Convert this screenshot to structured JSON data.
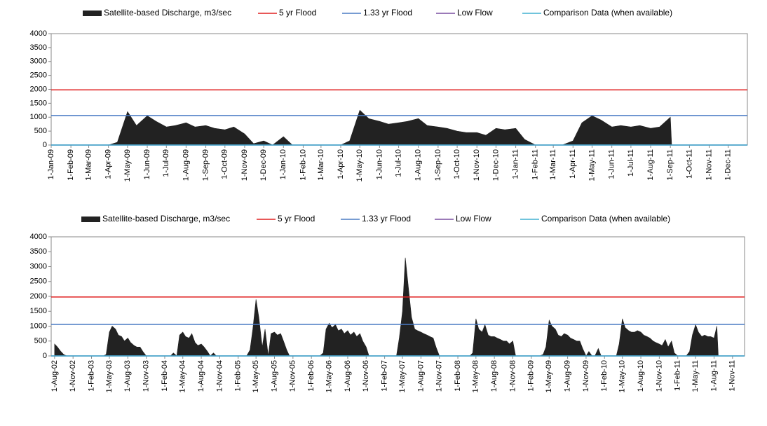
{
  "chart_data": [
    {
      "type": "area",
      "xlim": [
        "1-Jan-09",
        "31-Dec-11"
      ],
      "ylim": [
        0,
        4000
      ],
      "yticks": [
        0,
        500,
        1000,
        1500,
        2000,
        2500,
        3000,
        3500,
        4000
      ],
      "xticks": [
        "1-Jan-09",
        "1-Feb-09",
        "1-Mar-09",
        "1-Apr-09",
        "1-May-09",
        "1-Jun-09",
        "1-Jul-09",
        "1-Aug-09",
        "1-Sep-09",
        "1-Oct-09",
        "1-Nov-09",
        "1-Dec-09",
        "1-Jan-10",
        "1-Feb-10",
        "1-Mar-10",
        "1-Apr-10",
        "1-May-10",
        "1-Jun-10",
        "1-Jul-10",
        "1-Aug-10",
        "1-Sep-10",
        "1-Oct-10",
        "1-Nov-10",
        "1-Dec-10",
        "1-Jan-11",
        "1-Feb-11",
        "1-Mar-11",
        "1-Apr-11",
        "1-May-11",
        "1-Jun-11",
        "1-Jul-11",
        "1-Aug-11",
        "1-Sep-11",
        "1-Oct-11",
        "1-Nov-11",
        "1-Dec-11"
      ],
      "series": [
        {
          "name": "Satellite-based Discharge, m3/sec",
          "color": "#222222",
          "x": [
            "1-Jan-09",
            "15-Jan-09",
            "1-Feb-09",
            "15-Feb-09",
            "1-Mar-09",
            "15-Mar-09",
            "1-Apr-09",
            "15-Apr-09",
            "1-May-09",
            "15-May-09",
            "1-Jun-09",
            "15-Jun-09",
            "1-Jul-09",
            "15-Jul-09",
            "1-Aug-09",
            "15-Aug-09",
            "1-Sep-09",
            "15-Sep-09",
            "1-Oct-09",
            "15-Oct-09",
            "1-Nov-09",
            "15-Nov-09",
            "1-Dec-09",
            "15-Dec-09",
            "1-Jan-10",
            "15-Jan-10",
            "1-Feb-10",
            "15-Feb-10",
            "1-Mar-10",
            "15-Mar-10",
            "1-Apr-10",
            "15-Apr-10",
            "1-May-10",
            "15-May-10",
            "1-Jun-10",
            "15-Jun-10",
            "1-Jul-10",
            "15-Jul-10",
            "1-Aug-10",
            "15-Aug-10",
            "1-Sep-10",
            "15-Sep-10",
            "1-Oct-10",
            "15-Oct-10",
            "1-Nov-10",
            "15-Nov-10",
            "1-Dec-10",
            "15-Dec-10",
            "1-Jan-11",
            "15-Jan-11",
            "1-Feb-11",
            "15-Feb-11",
            "1-Mar-11",
            "15-Mar-11",
            "1-Apr-11",
            "15-Apr-11",
            "1-May-11",
            "15-May-11",
            "1-Jun-11",
            "15-Jun-11",
            "1-Jul-11",
            "15-Jul-11",
            "1-Aug-11",
            "15-Aug-11",
            "1-Sep-11",
            "3-Sep-11"
          ],
          "values": [
            0,
            0,
            0,
            0,
            0,
            0,
            0,
            100,
            1200,
            700,
            1050,
            850,
            650,
            700,
            800,
            650,
            700,
            600,
            550,
            650,
            400,
            50,
            150,
            0,
            300,
            0,
            0,
            0,
            0,
            0,
            0,
            150,
            1250,
            950,
            850,
            750,
            800,
            850,
            950,
            700,
            650,
            600,
            500,
            450,
            450,
            350,
            600,
            550,
            600,
            200,
            0,
            0,
            0,
            0,
            150,
            800,
            1050,
            900,
            650,
            700,
            650,
            700,
            600,
            650,
            1000,
            0
          ]
        },
        {
          "name": "5 yr Flood",
          "color": "#e02020",
          "level": 1980
        },
        {
          "name": "1.33 yr Flood",
          "color": "#4a7bc4",
          "level": 1060
        },
        {
          "name": "Low Flow",
          "color": "#7a4fa0",
          "level": 0
        },
        {
          "name": "Comparison Data (when available)",
          "color": "#40b0d0",
          "level": 0
        }
      ]
    },
    {
      "type": "area",
      "xlim": [
        "15-Jul-02",
        "31-Dec-11"
      ],
      "ylim": [
        0,
        4000
      ],
      "yticks": [
        0,
        500,
        1000,
        1500,
        2000,
        2500,
        3000,
        3500,
        4000
      ],
      "xticks": [
        "1-Aug-02",
        "1-Nov-02",
        "1-Feb-03",
        "1-May-03",
        "1-Aug-03",
        "1-Nov-03",
        "1-Feb-04",
        "1-May-04",
        "1-Aug-04",
        "1-Nov-04",
        "1-Feb-05",
        "1-May-05",
        "1-Aug-05",
        "1-Nov-05",
        "1-Feb-06",
        "1-May-06",
        "1-Aug-06",
        "1-Nov-06",
        "1-Feb-07",
        "1-May-07",
        "1-Aug-07",
        "1-Nov-07",
        "1-Feb-08",
        "1-May-08",
        "1-Aug-08",
        "1-Nov-08",
        "1-Feb-09",
        "1-May-09",
        "1-Aug-09",
        "1-Nov-09",
        "1-Feb-10",
        "1-May-10",
        "1-Aug-10",
        "1-Nov-10",
        "1-Feb-11",
        "1-May-11",
        "1-Aug-11",
        "1-Nov-11"
      ],
      "series": [
        {
          "name": "Satellite-based Discharge, m3/sec",
          "color": "#222222",
          "x": [
            "1-Aug-02",
            "15-Aug-02",
            "1-Sep-02",
            "15-Sep-02",
            "1-Oct-02",
            "15-Oct-02",
            "1-Nov-02",
            "15-Nov-02",
            "1-Dec-02",
            "15-Dec-02",
            "1-Jan-03",
            "15-Jan-03",
            "1-Feb-03",
            "15-Feb-03",
            "1-Mar-03",
            "15-Mar-03",
            "1-Apr-03",
            "15-Apr-03",
            "1-May-03",
            "15-May-03",
            "1-Jun-03",
            "15-Jun-03",
            "1-Jul-03",
            "15-Jul-03",
            "1-Aug-03",
            "15-Aug-03",
            "1-Sep-03",
            "15-Sep-03",
            "1-Oct-03",
            "15-Oct-03",
            "1-Nov-03",
            "15-Nov-03",
            "1-Dec-03",
            "15-Dec-03",
            "1-Jan-04",
            "15-Jan-04",
            "1-Feb-04",
            "15-Feb-04",
            "1-Mar-04",
            "15-Mar-04",
            "1-Apr-04",
            "15-Apr-04",
            "1-May-04",
            "15-May-04",
            "1-Jun-04",
            "15-Jun-04",
            "1-Jul-04",
            "15-Jul-04",
            "1-Aug-04",
            "15-Aug-04",
            "1-Sep-04",
            "15-Sep-04",
            "1-Oct-04",
            "15-Oct-04",
            "1-Nov-04",
            "15-Nov-04",
            "1-Dec-04",
            "15-Dec-04",
            "1-Jan-05",
            "15-Jan-05",
            "1-Feb-05",
            "15-Feb-05",
            "1-Mar-05",
            "15-Mar-05",
            "1-Apr-05",
            "15-Apr-05",
            "1-May-05",
            "15-May-05",
            "1-Jun-05",
            "15-Jun-05",
            "1-Jul-05",
            "15-Jul-05",
            "1-Aug-05",
            "15-Aug-05",
            "1-Sep-05",
            "15-Sep-05",
            "1-Oct-05",
            "15-Oct-05",
            "1-Nov-05",
            "15-Nov-05",
            "1-Dec-05",
            "15-Dec-05",
            "1-Jan-06",
            "15-Jan-06",
            "1-Feb-06",
            "15-Feb-06",
            "1-Mar-06",
            "15-Mar-06",
            "1-Apr-06",
            "15-Apr-06",
            "1-May-06",
            "15-May-06",
            "1-Jun-06",
            "15-Jun-06",
            "1-Jul-06",
            "15-Jul-06",
            "1-Aug-06",
            "15-Aug-06",
            "1-Sep-06",
            "15-Sep-06",
            "1-Oct-06",
            "15-Oct-06",
            "1-Nov-06",
            "15-Nov-06",
            "1-Dec-06",
            "15-Dec-06",
            "1-Jan-07",
            "15-Jan-07",
            "1-Feb-07",
            "15-Feb-07",
            "1-Mar-07",
            "15-Mar-07",
            "1-Apr-07",
            "15-Apr-07",
            "1-May-07",
            "15-May-07",
            "1-Jun-07",
            "15-Jun-07",
            "1-Jul-07",
            "15-Jul-07",
            "1-Aug-07",
            "15-Aug-07",
            "1-Sep-07",
            "15-Sep-07",
            "1-Oct-07",
            "15-Oct-07",
            "1-Nov-07",
            "15-Nov-07",
            "1-Dec-07",
            "15-Dec-07",
            "1-Jan-08",
            "15-Jan-08",
            "1-Feb-08",
            "15-Feb-08",
            "1-Mar-08",
            "15-Mar-08",
            "1-Apr-08",
            "15-Apr-08",
            "1-May-08",
            "15-May-08",
            "1-Jun-08",
            "15-Jun-08",
            "1-Jul-08",
            "15-Jul-08",
            "1-Aug-08",
            "15-Aug-08",
            "1-Sep-08",
            "15-Sep-08",
            "1-Oct-08",
            "15-Oct-08",
            "1-Nov-08",
            "15-Nov-08",
            "1-Dec-08",
            "15-Dec-08",
            "1-Jan-09",
            "15-Jan-09",
            "1-Feb-09",
            "15-Feb-09",
            "1-Mar-09",
            "15-Mar-09",
            "1-Apr-09",
            "15-Apr-09",
            "1-May-09",
            "15-May-09",
            "1-Jun-09",
            "15-Jun-09",
            "1-Jul-09",
            "15-Jul-09",
            "1-Aug-09",
            "15-Aug-09",
            "1-Sep-09",
            "15-Sep-09",
            "1-Oct-09",
            "15-Oct-09",
            "1-Nov-09",
            "15-Nov-09",
            "1-Dec-09",
            "15-Dec-09",
            "1-Jan-10",
            "15-Jan-10",
            "1-Feb-10",
            "15-Feb-10",
            "1-Mar-10",
            "15-Mar-10",
            "1-Apr-10",
            "15-Apr-10",
            "1-May-10",
            "15-May-10",
            "1-Jun-10",
            "15-Jun-10",
            "1-Jul-10",
            "15-Jul-10",
            "1-Aug-10",
            "15-Aug-10",
            "1-Sep-10",
            "15-Sep-10",
            "1-Oct-10",
            "15-Oct-10",
            "1-Nov-10",
            "15-Nov-10",
            "1-Dec-10",
            "15-Dec-10",
            "1-Jan-11",
            "15-Jan-11",
            "1-Feb-11",
            "15-Feb-11",
            "1-Mar-11",
            "15-Mar-11",
            "1-Apr-11",
            "15-Apr-11",
            "1-May-11",
            "15-May-11",
            "1-Jun-11",
            "15-Jun-11",
            "1-Jul-11",
            "15-Jul-11",
            "1-Aug-11",
            "15-Aug-11",
            "22-Aug-11"
          ],
          "values": [
            400,
            300,
            150,
            50,
            0,
            0,
            0,
            0,
            0,
            0,
            0,
            0,
            0,
            0,
            0,
            0,
            0,
            50,
            800,
            1000,
            900,
            700,
            650,
            500,
            600,
            450,
            350,
            300,
            300,
            150,
            0,
            0,
            0,
            0,
            0,
            0,
            0,
            0,
            0,
            100,
            0,
            700,
            800,
            650,
            600,
            750,
            450,
            350,
            400,
            300,
            150,
            0,
            100,
            0,
            0,
            0,
            0,
            0,
            0,
            0,
            0,
            0,
            0,
            0,
            200,
            900,
            1900,
            1300,
            300,
            900,
            0,
            750,
            800,
            700,
            750,
            500,
            200,
            0,
            0,
            0,
            0,
            0,
            0,
            0,
            0,
            0,
            0,
            0,
            100,
            900,
            1100,
            950,
            1050,
            850,
            900,
            750,
            850,
            700,
            800,
            650,
            750,
            500,
            300,
            0,
            0,
            0,
            0,
            0,
            0,
            0,
            0,
            0,
            0,
            600,
            1500,
            3300,
            2200,
            1300,
            900,
            850,
            800,
            750,
            700,
            650,
            600,
            300,
            0,
            0,
            0,
            0,
            0,
            0,
            0,
            0,
            0,
            0,
            0,
            100,
            1250,
            900,
            800,
            1050,
            700,
            650,
            650,
            600,
            550,
            500,
            500,
            400,
            500,
            0,
            0,
            0,
            0,
            0,
            0,
            0,
            0,
            0,
            50,
            300,
            1200,
            1000,
            900,
            700,
            650,
            750,
            700,
            600,
            550,
            500,
            500,
            250,
            0,
            150,
            0,
            0,
            250,
            0,
            0,
            0,
            0,
            0,
            0,
            400,
            1250,
            950,
            850,
            800,
            800,
            850,
            800,
            700,
            650,
            600,
            500,
            450,
            400,
            350,
            550,
            300,
            500,
            100,
            0,
            0,
            0,
            0,
            150,
            700,
            1050,
            800,
            650,
            700,
            650,
            650,
            600,
            1000,
            0
          ]
        },
        {
          "name": "5 yr Flood",
          "color": "#e02020",
          "level": 1980
        },
        {
          "name": "1.33 yr Flood",
          "color": "#4a7bc4",
          "level": 1060
        },
        {
          "name": "Low Flow",
          "color": "#7a4fa0",
          "level": 0
        },
        {
          "name": "Comparison Data (when available)",
          "color": "#40b0d0",
          "level": 0
        }
      ]
    }
  ]
}
